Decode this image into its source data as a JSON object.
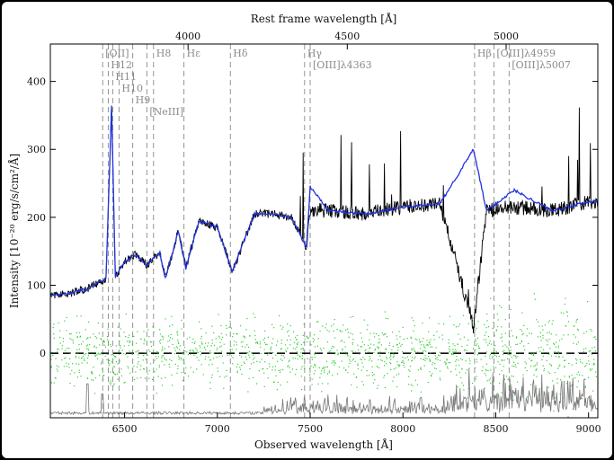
{
  "chart_data": {
    "type": "line",
    "title": "",
    "xlabel": "Observed wavelength [Å]",
    "ylabel": "Intensity [10⁻²⁰ erg/s/cm²/Å]",
    "top_xlabel": "Rest frame wavelength [Å]",
    "xlim": [
      6100,
      9050
    ],
    "ylim": [
      -95,
      455
    ],
    "x_ticks": [
      6500,
      7000,
      7500,
      8000,
      8500,
      9000
    ],
    "x_tick_labels": [
      "6500",
      "7000",
      "7500",
      "8000",
      "8500",
      "9000"
    ],
    "y_ticks": [
      0,
      100,
      200,
      300,
      400
    ],
    "y_tick_labels": [
      "0",
      "100",
      "200",
      "300",
      "400"
    ],
    "top_ticks_obs": [
      6842,
      7700,
      8556
    ],
    "top_tick_labels": [
      "4000",
      "4500",
      "5000"
    ],
    "redshift": 0.7112,
    "grid": false,
    "series": [
      {
        "name": "",
        "style": "black-noisy-spectrum",
        "x": [
          6100,
          6200,
          6300,
          6400,
          6430,
          6450,
          6500,
          6560,
          6620,
          6690,
          6720,
          6790,
          6830,
          6900,
          7000,
          7080,
          7200,
          7300,
          7400,
          7480,
          7500,
          7600,
          7800,
          8000,
          8200,
          8380,
          8450,
          8600,
          8800,
          9050
        ],
        "values": [
          85,
          88,
          95,
          110,
          365,
          112,
          135,
          145,
          130,
          148,
          110,
          180,
          125,
          195,
          185,
          120,
          205,
          205,
          200,
          155,
          212,
          210,
          205,
          215,
          220,
          40,
          210,
          215,
          210,
          225
        ]
      },
      {
        "name": "",
        "style": "blue-model",
        "color": "#2233dd",
        "x": [
          6100,
          6200,
          6300,
          6400,
          6430,
          6450,
          6500,
          6560,
          6620,
          6690,
          6720,
          6790,
          6830,
          6900,
          7000,
          7080,
          7200,
          7300,
          7400,
          7480,
          7500,
          7600,
          7800,
          8000,
          8200,
          8380,
          8450,
          8600,
          8800,
          9050
        ],
        "values": [
          85,
          88,
          95,
          110,
          365,
          112,
          135,
          145,
          130,
          148,
          110,
          180,
          125,
          195,
          185,
          120,
          205,
          205,
          200,
          155,
          245,
          210,
          205,
          215,
          220,
          300,
          210,
          240,
          210,
          225
        ]
      },
      {
        "name": "",
        "style": "green-residual-points",
        "color": "#33cc33",
        "center": 0,
        "spread": 45
      },
      {
        "name": "",
        "style": "gray-sky-noise",
        "color": "#777777",
        "baseline": -90
      }
    ],
    "lines": [
      {
        "label": "[OII]",
        "x": 6382,
        "label_row": 0
      },
      {
        "label": "H12",
        "x": 6412,
        "label_row": 1
      },
      {
        "label": "H11",
        "x": 6436,
        "label_row": 2
      },
      {
        "label": "H10",
        "x": 6470,
        "label_row": 3
      },
      {
        "label": "H9",
        "x": 6544,
        "label_row": 4
      },
      {
        "label": "[NeIII]",
        "x": 6620,
        "label_row": 5
      },
      {
        "label": "H8",
        "x": 6656,
        "label_row": 0
      },
      {
        "label": "Hε",
        "x": 6820,
        "label_row": 0
      },
      {
        "label": "Hδ",
        "x": 7070,
        "label_row": 0
      },
      {
        "label": "Hγ",
        "x": 7470,
        "label_row": 0
      },
      {
        "label": "[OIII]λ4363",
        "x": 7500,
        "label_row": 1
      },
      {
        "label": "Hβ",
        "x": 8386,
        "label_row": 0
      },
      {
        "label": "[OIII]λ4959",
        "x": 8490,
        "label_row": 0
      },
      {
        "label": "[OIII]λ5007",
        "x": 8572,
        "label_row": 1
      }
    ]
  }
}
